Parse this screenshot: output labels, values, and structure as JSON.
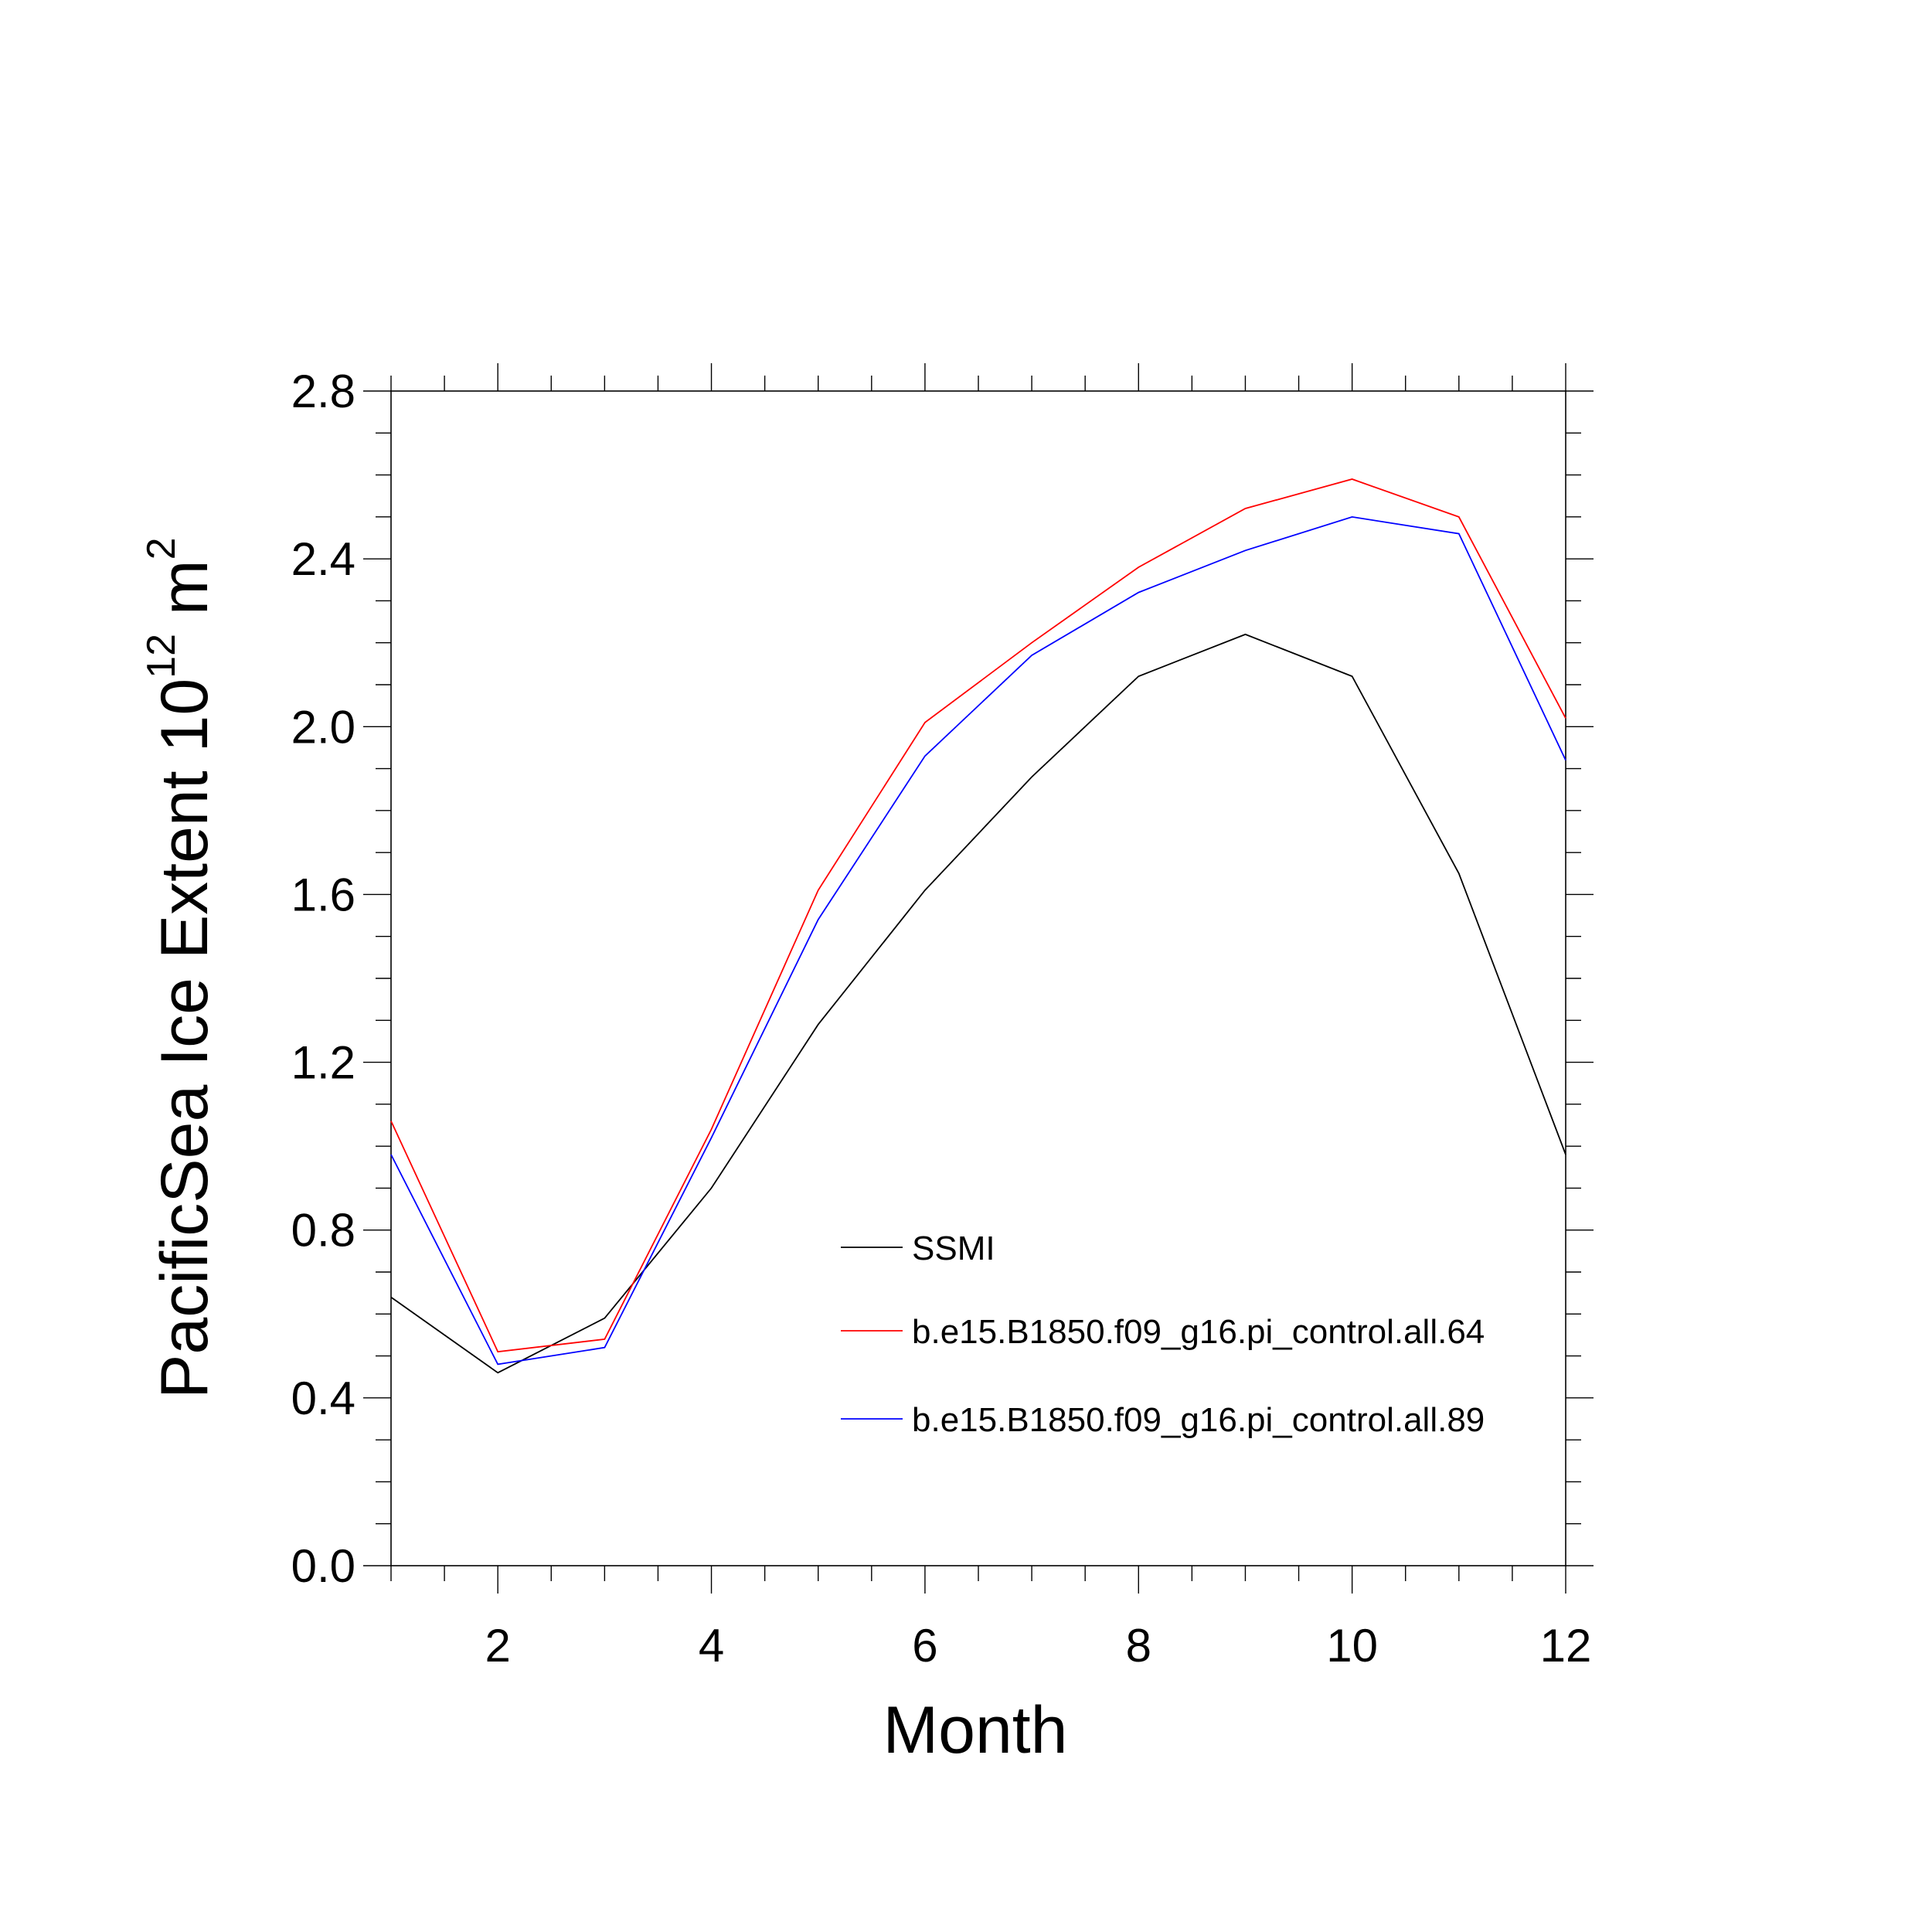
{
  "chart_data": {
    "type": "line",
    "xlabel": "Month",
    "ylabel": {
      "prefix": "PacificSea Ice Extent 10",
      "exponent": "12",
      "unit": " m",
      "unit_exponent": "2"
    },
    "xlim": [
      1,
      12
    ],
    "ylim": [
      0.0,
      2.8
    ],
    "x_ticks": [
      2,
      4,
      6,
      8,
      10,
      12
    ],
    "x_tick_labels": [
      "2",
      "4",
      "6",
      "8",
      "10",
      "12"
    ],
    "y_ticks": [
      0.0,
      0.4,
      0.8,
      1.2,
      1.6,
      2.0,
      2.4,
      2.8
    ],
    "y_tick_labels": [
      "0.0",
      "0.4",
      "0.8",
      "1.2",
      "1.6",
      "2.0",
      "2.4",
      "2.8"
    ],
    "x": [
      1,
      2,
      3,
      4,
      5,
      6,
      7,
      8,
      9,
      10,
      11,
      12
    ],
    "grid": false,
    "legend_position": "lower-right",
    "series": [
      {
        "name": "SSMI",
        "color": "#000000",
        "values": [
          0.64,
          0.46,
          0.59,
          0.9,
          1.29,
          1.61,
          1.88,
          2.12,
          2.22,
          2.12,
          1.65,
          0.98
        ]
      },
      {
        "name": "b.e15.B1850.f09_g16.pi_control.all.64",
        "color": "#ff0000",
        "values": [
          1.06,
          0.51,
          0.54,
          1.04,
          1.61,
          2.01,
          2.2,
          2.38,
          2.52,
          2.59,
          2.5,
          2.02
        ]
      },
      {
        "name": "b.e15.B1850.f09_g16.pi_control.all.89",
        "color": "#0000ff",
        "values": [
          0.98,
          0.48,
          0.52,
          1.02,
          1.54,
          1.93,
          2.17,
          2.32,
          2.42,
          2.5,
          2.46,
          1.92
        ]
      }
    ]
  }
}
